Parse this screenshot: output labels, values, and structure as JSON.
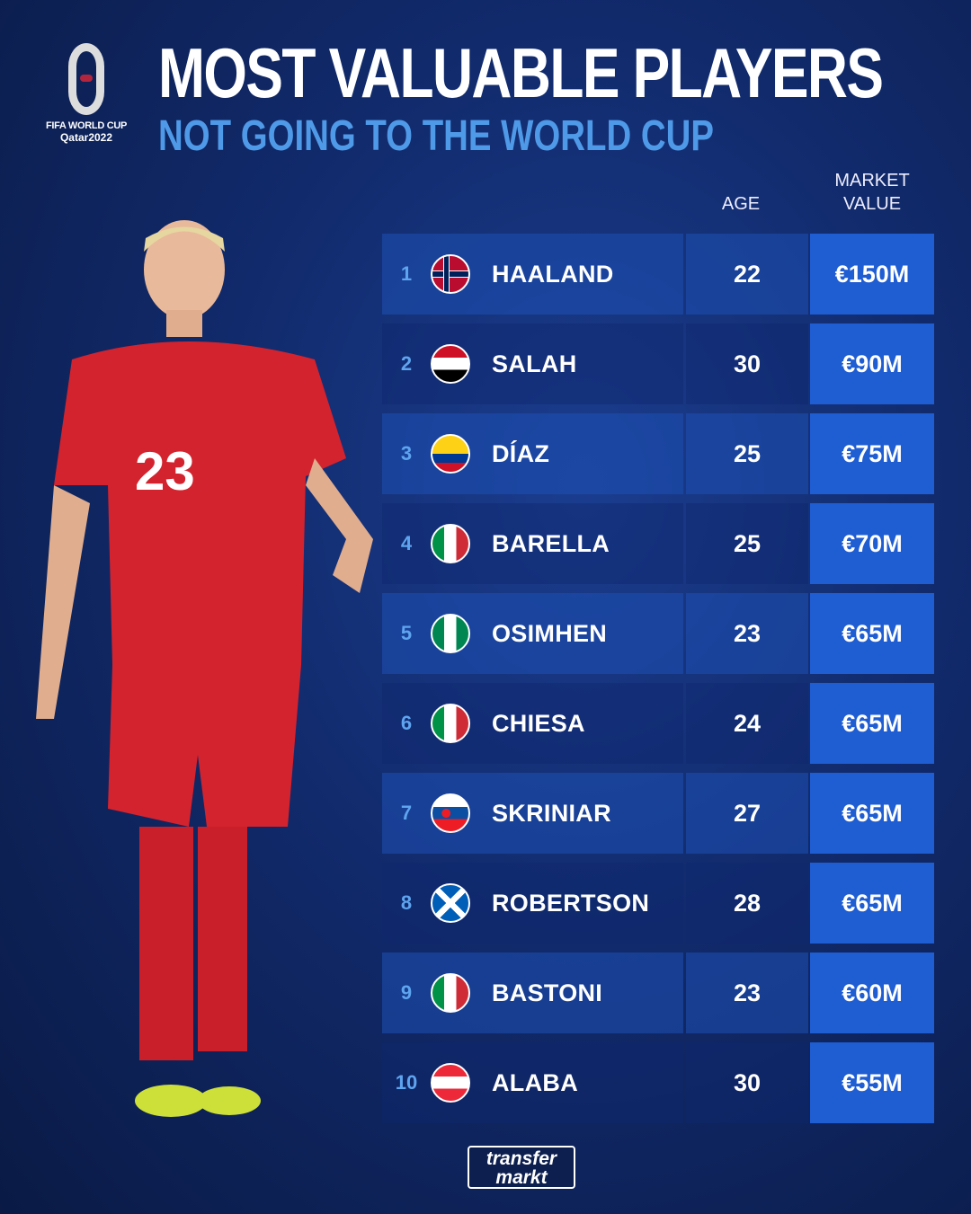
{
  "logo": {
    "line1": "FIFA WORLD CUP",
    "line2": "Qatar2022"
  },
  "title": "MOST VALUABLE PLAYERS",
  "subtitle": "NOT GOING TO THE WORLD CUP",
  "headers": {
    "age": "AGE",
    "market_value_line1": "MARKET",
    "market_value_line2": "VALUE"
  },
  "rows": [
    {
      "rank": "1",
      "flag": "norway-flag",
      "name": "HAALAND",
      "age": "22",
      "value": "€150M"
    },
    {
      "rank": "2",
      "flag": "egypt-flag",
      "name": "SALAH",
      "age": "30",
      "value": "€90M"
    },
    {
      "rank": "3",
      "flag": "colombia-flag",
      "name": "DÍAZ",
      "age": "25",
      "value": "€75M"
    },
    {
      "rank": "4",
      "flag": "italy-flag",
      "name": "BARELLA",
      "age": "25",
      "value": "€70M"
    },
    {
      "rank": "5",
      "flag": "nigeria-flag",
      "name": "OSIMHEN",
      "age": "23",
      "value": "€65M"
    },
    {
      "rank": "6",
      "flag": "italy-flag",
      "name": "CHIESA",
      "age": "24",
      "value": "€65M"
    },
    {
      "rank": "7",
      "flag": "slovakia-flag",
      "name": "SKRINIAR",
      "age": "27",
      "value": "€65M"
    },
    {
      "rank": "8",
      "flag": "scotland-flag",
      "name": "ROBERTSON",
      "age": "28",
      "value": "€65M"
    },
    {
      "rank": "9",
      "flag": "italy-flag",
      "name": "BASTONI",
      "age": "23",
      "value": "€60M"
    },
    {
      "rank": "10",
      "flag": "austria-flag",
      "name": "ALABA",
      "age": "30",
      "value": "€55M"
    }
  ],
  "player_jersey_number": "23",
  "footer": {
    "line1": "transfer",
    "line2": "markt"
  },
  "colors": {
    "background": "#112a6b",
    "accent": "#1f5dd3",
    "subtitle": "#4f9ae8",
    "jersey": "#d3232e"
  }
}
